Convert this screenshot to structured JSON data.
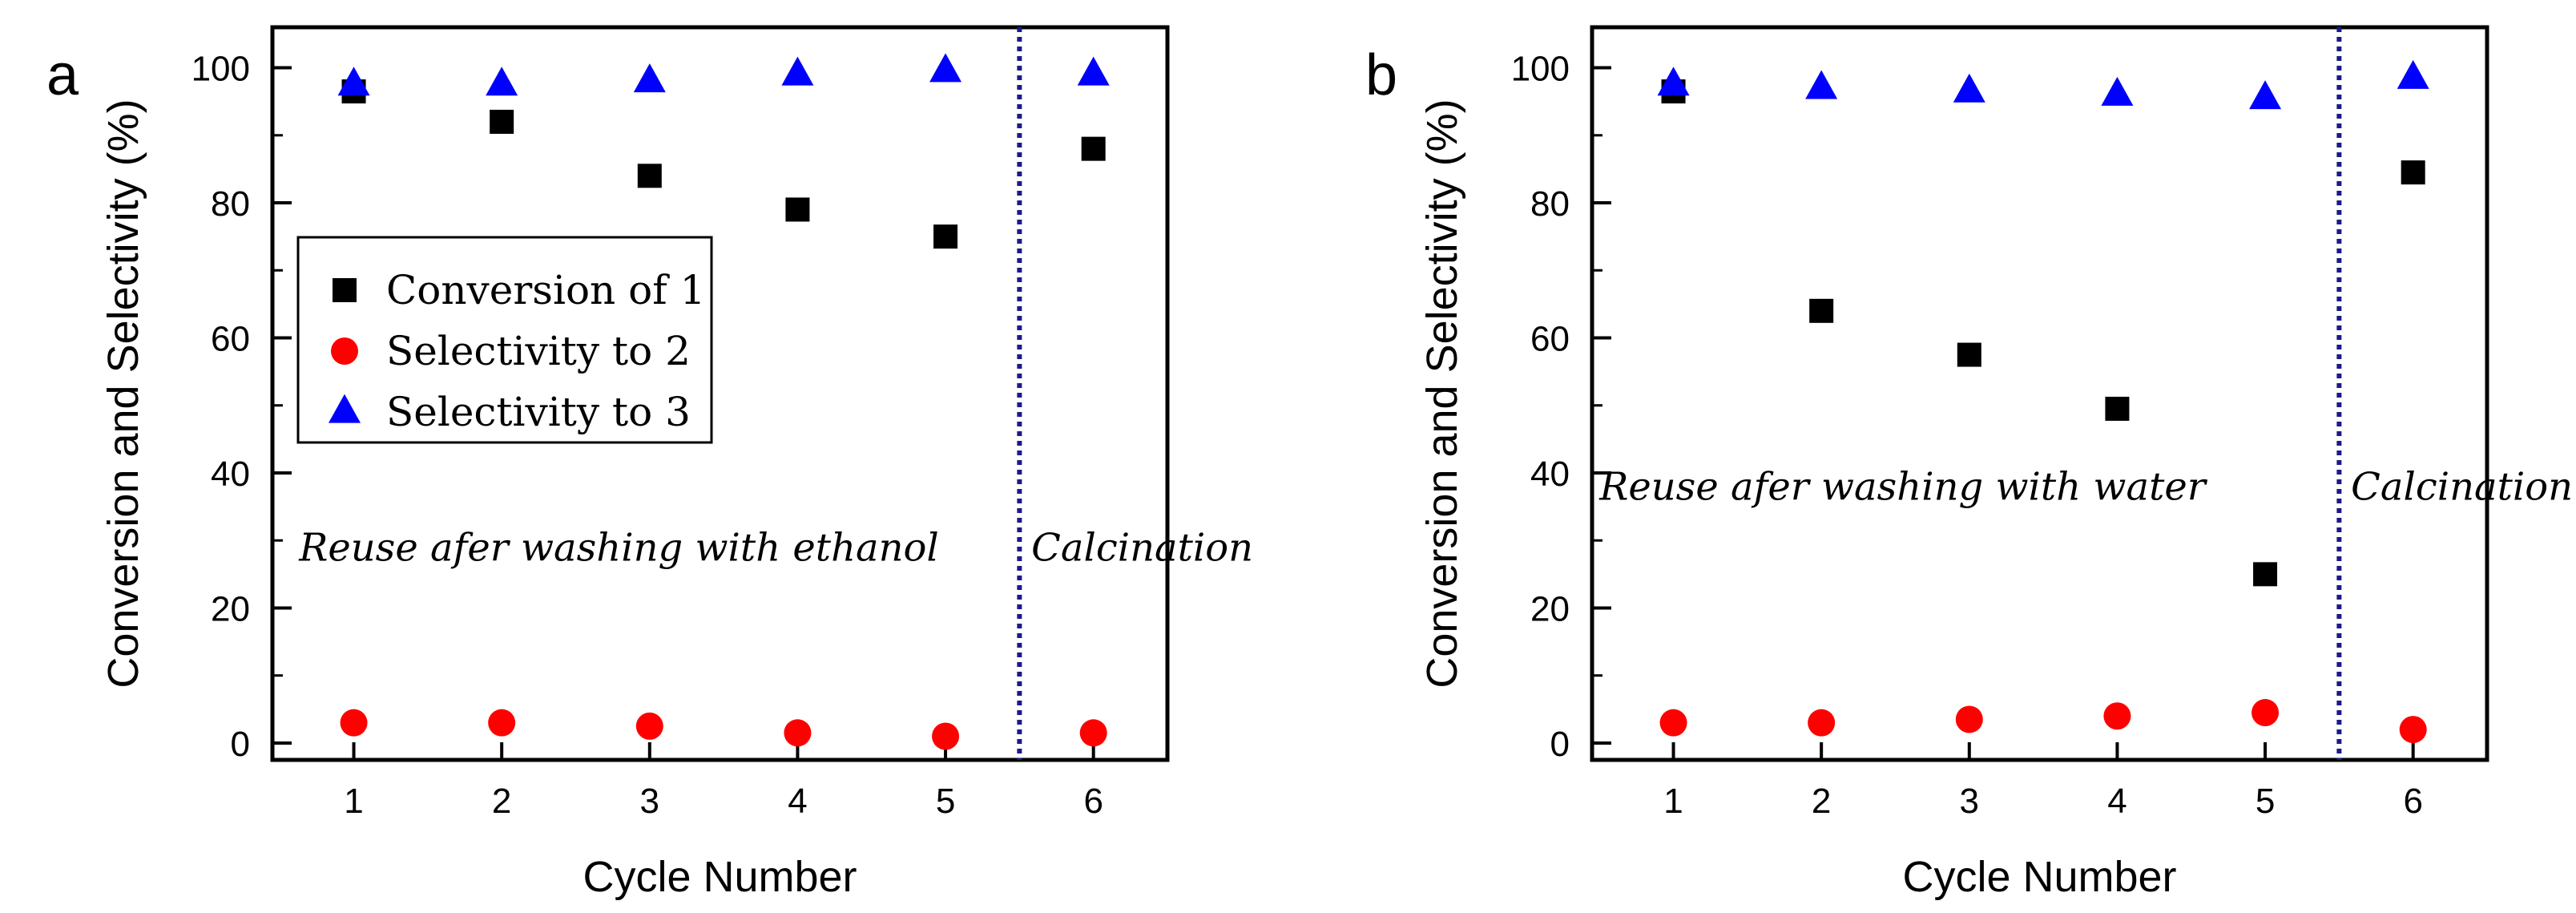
{
  "chart_data": [
    {
      "type": "scatter",
      "panel_label": "a",
      "xlabel": "Cycle Number",
      "ylabel": "Conversion and Selectivity (%)",
      "xlim": [
        0.45,
        6.5
      ],
      "ylim": [
        -2.5,
        106
      ],
      "xticks": [
        "1",
        "2",
        "3",
        "4",
        "5",
        "6"
      ],
      "yticks": [
        "0",
        "20",
        "40",
        "60",
        "80",
        "100"
      ],
      "divider_x": 5.5,
      "annotations": [
        {
          "text": "Reuse afer washing with ethanol",
          "x": 0.63,
          "y": 27
        },
        {
          "text": "Calcination",
          "x": 5.58,
          "y": 27
        }
      ],
      "legend": {
        "position": "middle-left",
        "show": true
      },
      "series": [
        {
          "name": "Conversion of 1",
          "marker": "square",
          "color": "#000000",
          "x": [
            1,
            2,
            3,
            4,
            5,
            6
          ],
          "values": [
            96.5,
            92,
            84,
            79,
            75,
            88
          ]
        },
        {
          "name": "Selectivity to 2",
          "marker": "circle",
          "color": "#ff0000",
          "x": [
            1,
            2,
            3,
            4,
            5,
            6
          ],
          "values": [
            3,
            3,
            2.5,
            1.5,
            1,
            1.5
          ]
        },
        {
          "name": "Selectivity to 3",
          "marker": "triangle",
          "color": "#0000ff",
          "x": [
            1,
            2,
            3,
            4,
            5,
            6
          ],
          "values": [
            97.5,
            97.5,
            98,
            99,
            99.5,
            99
          ]
        }
      ]
    },
    {
      "type": "scatter",
      "panel_label": "b",
      "xlabel": "Cycle Number",
      "ylabel": "Conversion and Selectivity (%)",
      "xlim": [
        0.45,
        6.5
      ],
      "ylim": [
        -2.5,
        106
      ],
      "xticks": [
        "1",
        "2",
        "3",
        "4",
        "5",
        "6"
      ],
      "yticks": [
        "0",
        "20",
        "40",
        "60",
        "80",
        "100"
      ],
      "divider_x": 5.5,
      "annotations": [
        {
          "text": "Reuse afer washing with water",
          "x": 0.5,
          "y": 36
        },
        {
          "text": "Calcination",
          "x": 5.58,
          "y": 36
        }
      ],
      "legend": {
        "show": false
      },
      "series": [
        {
          "name": "Conversion of 1",
          "marker": "square",
          "color": "#000000",
          "x": [
            1,
            2,
            3,
            4,
            5,
            6
          ],
          "values": [
            96.5,
            64,
            57.5,
            49.5,
            25,
            84.5
          ]
        },
        {
          "name": "Selectivity to 2",
          "marker": "circle",
          "color": "#ff0000",
          "x": [
            1,
            2,
            3,
            4,
            5,
            6
          ],
          "values": [
            3,
            3,
            3.5,
            4,
            4.5,
            2
          ]
        },
        {
          "name": "Selectivity to 3",
          "marker": "triangle",
          "color": "#0000ff",
          "x": [
            1,
            2,
            3,
            4,
            5,
            6
          ],
          "values": [
            97.5,
            97,
            96.5,
            96,
            95.5,
            98.5
          ]
        }
      ]
    }
  ]
}
